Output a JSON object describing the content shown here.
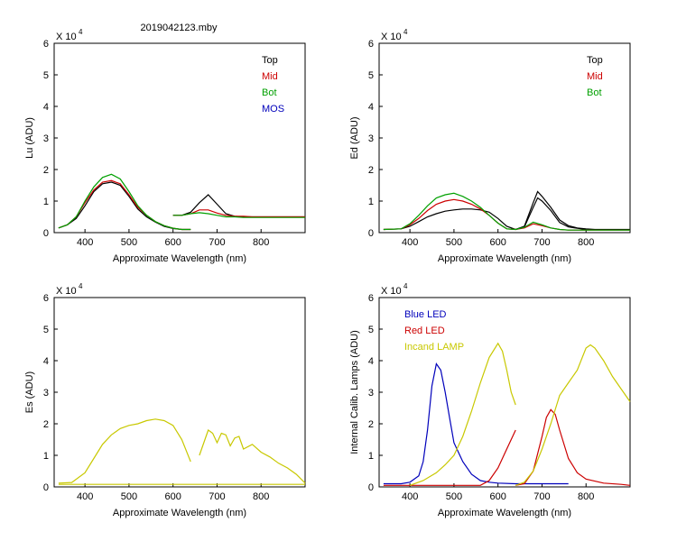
{
  "figure_title": "2019042123.mby",
  "chart_data": [
    {
      "type": "line",
      "ylabel": "Lu (ADU)",
      "xlabel": "Approximate Wavelength (nm)",
      "xlim": [
        330,
        900
      ],
      "ylim": [
        0,
        6
      ],
      "y_multiplier": "X 10",
      "y_exponent": "4",
      "xticks": [
        400,
        500,
        600,
        700,
        800
      ],
      "yticks": [
        0,
        1,
        2,
        3,
        4,
        5,
        6
      ],
      "legend": [
        "Top",
        "Mid",
        "Bot",
        "MOS"
      ],
      "series": [
        {
          "name": "Top",
          "color": "#000000",
          "segments": [
            {
              "x": [
                340,
                360,
                380,
                400,
                420,
                440,
                460,
                480,
                500,
                520,
                540,
                560,
                580,
                600,
                620,
                640
              ],
              "y": [
                0.15,
                0.25,
                0.45,
                0.85,
                1.3,
                1.55,
                1.6,
                1.5,
                1.15,
                0.75,
                0.5,
                0.33,
                0.2,
                0.13,
                0.1,
                0.1
              ]
            },
            {
              "x": [
                600,
                620,
                640,
                660,
                680,
                700,
                720,
                740,
                760,
                780,
                800,
                820,
                840,
                860,
                900
              ],
              "y": [
                0.55,
                0.55,
                0.65,
                0.95,
                1.2,
                0.9,
                0.6,
                0.52,
                0.5,
                0.5,
                0.5,
                0.5,
                0.5,
                0.5,
                0.5
              ]
            }
          ]
        },
        {
          "name": "Mid",
          "color": "#cc0000",
          "segments": [
            {
              "x": [
                340,
                360,
                380,
                400,
                420,
                440,
                460,
                480,
                500,
                520,
                540,
                560,
                580,
                600,
                620,
                640
              ],
              "y": [
                0.15,
                0.25,
                0.5,
                0.95,
                1.35,
                1.6,
                1.65,
                1.55,
                1.2,
                0.8,
                0.55,
                0.35,
                0.22,
                0.14,
                0.1,
                0.1
              ]
            },
            {
              "x": [
                600,
                620,
                640,
                660,
                680,
                700,
                720,
                740,
                760,
                780,
                800,
                820,
                840,
                860,
                900
              ],
              "y": [
                0.55,
                0.55,
                0.6,
                0.72,
                0.72,
                0.62,
                0.55,
                0.52,
                0.52,
                0.5,
                0.5,
                0.5,
                0.5,
                0.5,
                0.5
              ]
            }
          ]
        },
        {
          "name": "Bot",
          "color": "#00a000",
          "segments": [
            {
              "x": [
                340,
                360,
                380,
                400,
                420,
                440,
                460,
                480,
                500,
                520,
                540,
                560,
                580,
                600,
                620,
                640
              ],
              "y": [
                0.15,
                0.25,
                0.5,
                1.0,
                1.45,
                1.75,
                1.85,
                1.7,
                1.3,
                0.85,
                0.55,
                0.35,
                0.22,
                0.14,
                0.1,
                0.1
              ]
            },
            {
              "x": [
                600,
                620,
                640,
                660,
                680,
                700,
                720,
                740,
                760,
                780,
                800,
                820,
                840,
                860,
                900
              ],
              "y": [
                0.55,
                0.55,
                0.6,
                0.63,
                0.6,
                0.55,
                0.5,
                0.5,
                0.48,
                0.48,
                0.48,
                0.48,
                0.48,
                0.48,
                0.48
              ]
            }
          ]
        },
        {
          "name": "MOS",
          "color": "#0000bb",
          "segments": []
        }
      ]
    },
    {
      "type": "line",
      "ylabel": "Ed  (ADU)",
      "xlabel": "Approximate Wavelength (nm)",
      "xlim": [
        330,
        900
      ],
      "ylim": [
        0,
        6
      ],
      "y_multiplier": "X 10",
      "y_exponent": "4",
      "xticks": [
        400,
        500,
        600,
        700,
        800
      ],
      "yticks": [
        0,
        1,
        2,
        3,
        4,
        5,
        6
      ],
      "legend": [
        "Top",
        "Mid",
        "Bot"
      ],
      "series": [
        {
          "name": "Top",
          "color": "#000000",
          "segments": [
            {
              "x": [
                340,
                380,
                400,
                420,
                440,
                460,
                480,
                500,
                520,
                540,
                560,
                580,
                600,
                620,
                640,
                660,
                680,
                690,
                700,
                720,
                740,
                760,
                780,
                800,
                820,
                840,
                860,
                900
              ],
              "y": [
                0.1,
                0.12,
                0.2,
                0.35,
                0.5,
                0.6,
                0.68,
                0.72,
                0.75,
                0.75,
                0.72,
                0.65,
                0.45,
                0.2,
                0.1,
                0.2,
                0.95,
                1.3,
                1.15,
                0.8,
                0.4,
                0.22,
                0.15,
                0.12,
                0.1,
                0.1,
                0.1,
                0.1
              ]
            },
            {
              "x": [
                640,
                660,
                680,
                690,
                700,
                720,
                740,
                760,
                800
              ],
              "y": [
                0.1,
                0.18,
                0.8,
                1.1,
                1.0,
                0.7,
                0.32,
                0.18,
                0.1
              ]
            }
          ]
        },
        {
          "name": "Mid",
          "color": "#cc0000",
          "segments": [
            {
              "x": [
                340,
                380,
                400,
                420,
                440,
                460,
                480,
                500,
                520,
                540,
                560,
                580,
                600,
                620,
                640,
                660,
                680,
                700,
                720,
                740,
                760,
                800,
                850,
                900
              ],
              "y": [
                0.1,
                0.12,
                0.25,
                0.45,
                0.7,
                0.9,
                1.0,
                1.05,
                1.0,
                0.9,
                0.75,
                0.55,
                0.3,
                0.12,
                0.1,
                0.15,
                0.28,
                0.22,
                0.15,
                0.1,
                0.08,
                0.08,
                0.08,
                0.08
              ]
            }
          ]
        },
        {
          "name": "Bot",
          "color": "#00a000",
          "segments": [
            {
              "x": [
                340,
                380,
                400,
                420,
                440,
                460,
                480,
                500,
                520,
                540,
                560,
                580,
                600,
                620,
                640,
                660,
                680,
                700,
                720,
                740,
                760,
                800,
                850,
                900
              ],
              "y": [
                0.1,
                0.12,
                0.28,
                0.55,
                0.85,
                1.1,
                1.2,
                1.25,
                1.15,
                1.0,
                0.8,
                0.55,
                0.3,
                0.12,
                0.1,
                0.17,
                0.33,
                0.25,
                0.15,
                0.1,
                0.08,
                0.08,
                0.08,
                0.08
              ]
            }
          ]
        }
      ]
    },
    {
      "type": "line",
      "ylabel": "Es  (ADU)",
      "xlabel": "Approximate Wavelength (nm)",
      "xlim": [
        330,
        900
      ],
      "ylim": [
        0,
        6
      ],
      "y_multiplier": "X 10",
      "y_exponent": "4",
      "xticks": [
        400,
        500,
        600,
        700,
        800
      ],
      "yticks": [
        0,
        1,
        2,
        3,
        4,
        5,
        6
      ],
      "legend": [],
      "series": [
        {
          "name": "Es",
          "color": "#c8c800",
          "segments": [
            {
              "x": [
                340,
                370,
                400,
                420,
                440,
                460,
                480,
                500,
                520,
                540,
                560,
                580,
                600,
                620,
                640
              ],
              "y": [
                0.12,
                0.14,
                0.45,
                0.9,
                1.35,
                1.65,
                1.85,
                1.95,
                2.0,
                2.1,
                2.15,
                2.1,
                1.95,
                1.5,
                0.8
              ]
            },
            {
              "x": [
                660,
                680,
                690,
                700,
                710,
                720,
                730,
                740,
                750,
                760,
                780,
                800,
                820,
                840,
                860,
                880,
                900
              ],
              "y": [
                1.0,
                1.8,
                1.7,
                1.4,
                1.7,
                1.65,
                1.3,
                1.55,
                1.6,
                1.2,
                1.35,
                1.1,
                0.95,
                0.75,
                0.6,
                0.4,
                0.12
              ]
            }
          ]
        },
        {
          "name": "Baseline",
          "color": "#c8c800",
          "segments": [
            {
              "x": [
                340,
                900
              ],
              "y": [
                0.08,
                0.08
              ]
            }
          ]
        }
      ]
    },
    {
      "type": "line",
      "ylabel": "Internal Calib. Lamps (ADU)",
      "xlabel": "Approximate Wavelength (nm)",
      "xlim": [
        330,
        900
      ],
      "ylim": [
        0,
        6
      ],
      "y_multiplier": "X 10",
      "y_exponent": "4",
      "xticks": [
        400,
        500,
        600,
        700,
        800
      ],
      "yticks": [
        0,
        1,
        2,
        3,
        4,
        5,
        6
      ],
      "legend": [
        "Blue LED",
        "Red LED",
        "Incand LAMP"
      ],
      "series": [
        {
          "name": "Blue LED",
          "color": "#0000bb",
          "segments": [
            {
              "x": [
                340,
                380,
                400,
                420,
                430,
                440,
                450,
                460,
                470,
                480,
                490,
                500,
                520,
                540,
                560,
                580,
                600,
                640,
                700,
                760
              ],
              "y": [
                0.1,
                0.1,
                0.15,
                0.35,
                0.8,
                1.8,
                3.2,
                3.9,
                3.7,
                3.0,
                2.2,
                1.4,
                0.8,
                0.4,
                0.2,
                0.15,
                0.12,
                0.1,
                0.1,
                0.1
              ]
            }
          ]
        },
        {
          "name": "Red LED",
          "color": "#cc0000",
          "segments": [
            {
              "x": [
                340,
                560,
                580,
                600,
                620,
                640
              ],
              "y": [
                0.05,
                0.05,
                0.2,
                0.6,
                1.2,
                1.8
              ]
            },
            {
              "x": [
                640,
                660,
                680,
                700,
                710,
                720,
                730,
                740,
                760,
                780,
                800,
                840,
                880,
                900
              ],
              "y": [
                0.05,
                0.1,
                0.5,
                1.6,
                2.2,
                2.45,
                2.3,
                1.8,
                0.9,
                0.45,
                0.25,
                0.12,
                0.08,
                0.05
              ]
            }
          ]
        },
        {
          "name": "Incand LAMP",
          "color": "#c8c800",
          "segments": [
            {
              "x": [
                400,
                430,
                460,
                480,
                500,
                520,
                540,
                560,
                580,
                600,
                610,
                620,
                630,
                640
              ],
              "y": [
                0.05,
                0.2,
                0.45,
                0.7,
                1.0,
                1.6,
                2.4,
                3.3,
                4.1,
                4.55,
                4.3,
                3.7,
                3.0,
                2.6
              ]
            },
            {
              "x": [
                640,
                660,
                680,
                700,
                720,
                740,
                760,
                780,
                800,
                810,
                820,
                840,
                860,
                880,
                900
              ],
              "y": [
                0.05,
                0.15,
                0.5,
                1.2,
                2.0,
                2.9,
                3.3,
                3.7,
                4.4,
                4.5,
                4.4,
                4.0,
                3.5,
                3.1,
                2.7
              ]
            }
          ]
        }
      ]
    }
  ]
}
